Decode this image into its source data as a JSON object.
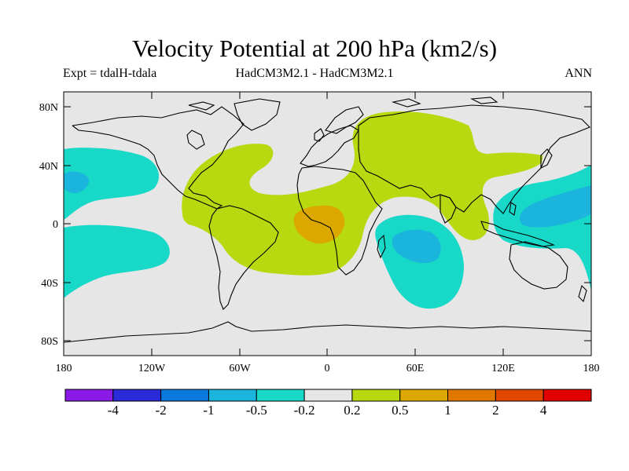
{
  "header": {
    "title": "Velocity Potential at 200 hPa (km2/s)",
    "left_label": "Expt = tdalH-tdala",
    "center_label": "HadCM3M2.1 - HadCM3M2.1",
    "right_label": "ANN"
  },
  "map": {
    "projection": "cylindrical equidistant",
    "lon_range": [
      -180,
      180
    ],
    "lat_range": [
      -90,
      90
    ],
    "lat_ticks": [
      {
        "value": 80,
        "label": "80N"
      },
      {
        "value": 40,
        "label": "40N"
      },
      {
        "value": 0,
        "label": "0"
      },
      {
        "value": -40,
        "label": "40S"
      },
      {
        "value": -80,
        "label": "80S"
      }
    ],
    "lon_ticks": [
      {
        "value": -180,
        "label": "180"
      },
      {
        "value": -120,
        "label": "120W"
      },
      {
        "value": -60,
        "label": "60W"
      },
      {
        "value": 0,
        "label": "0"
      },
      {
        "value": 60,
        "label": "60E"
      },
      {
        "value": 120,
        "label": "120E"
      },
      {
        "value": 180,
        "label": "180"
      }
    ],
    "background_color": "#e6e6e6",
    "coastline_color": "#000000"
  },
  "colorbar": {
    "levels": [
      "-4",
      "-2",
      "-1",
      "-0.5",
      "-0.2",
      "0.2",
      "0.5",
      "1",
      "2",
      "4"
    ],
    "colors": [
      "#8a1ae6",
      "#2a2ad8",
      "#0a78dc",
      "#1ab4dc",
      "#18d8c8",
      "#e6e6e6",
      "#b8d810",
      "#dca800",
      "#e07800",
      "#e04800",
      "#e00000"
    ]
  },
  "regions": [
    {
      "name": "positive-05-africa-atlantic",
      "level": "0.2 to 0.5"
    },
    {
      "name": "positive-1-central-africa",
      "level": "0.5 to 1"
    },
    {
      "name": "negative-05-east-pacific",
      "level": "-0.2 to -0.5"
    },
    {
      "name": "negative-05-indian-ocean",
      "level": "-0.2 to -0.5"
    },
    {
      "name": "negative-1-indian-ocean",
      "level": "-0.5 to -1"
    },
    {
      "name": "negative-05-west-pacific",
      "level": "-0.2 to -0.5"
    },
    {
      "name": "negative-1-west-pacific",
      "level": "-0.5 to -1"
    }
  ]
}
